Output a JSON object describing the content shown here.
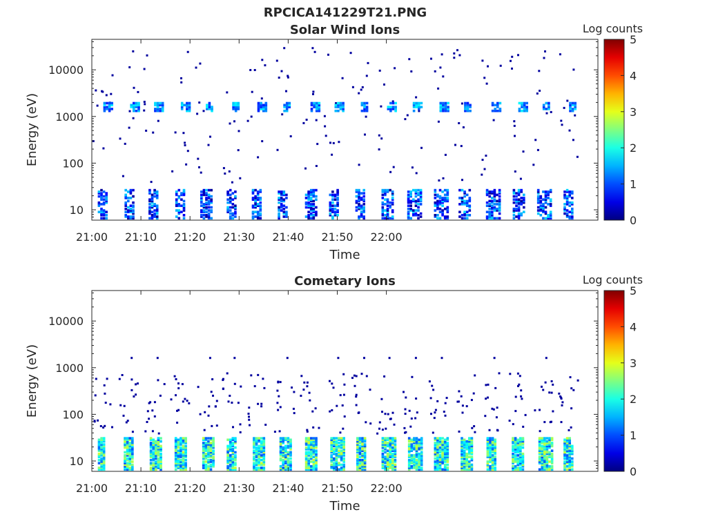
{
  "figure_title": "RPCICA141229T21.PNG",
  "chart_data": [
    {
      "type": "heatmap",
      "title": "Solar Wind Ions",
      "xlabel": "Time",
      "ylabel": "Energy (eV)",
      "x_tick_labels": [
        "21:00",
        "21:10",
        "21:20",
        "21:30",
        "21:40",
        "21:50",
        "22:00"
      ],
      "y_tick_labels": [
        "10",
        "100",
        "1000",
        "10000"
      ],
      "y_scale": "log",
      "ylim": [
        6,
        45000
      ],
      "colorbar": {
        "label": "Log counts",
        "tick_labels": [
          "0",
          "1",
          "2",
          "3",
          "4",
          "5"
        ],
        "range": [
          0,
          5
        ],
        "colormap": "jet"
      },
      "features": [
        {
          "description": "periodic bursts",
          "energy_eV": [
            7,
            30
          ],
          "log_counts": [
            0,
            2
          ]
        },
        {
          "description": "solar wind band",
          "energy_eV": [
            1400,
            2200
          ],
          "log_counts": [
            0.5,
            1.8
          ]
        }
      ]
    },
    {
      "type": "heatmap",
      "title": "Cometary Ions",
      "xlabel": "Time",
      "ylabel": "Energy (eV)",
      "x_tick_labels": [
        "21:00",
        "21:10",
        "21:20",
        "21:30",
        "21:40",
        "21:50",
        "22:00"
      ],
      "y_tick_labels": [
        "10",
        "100",
        "1000",
        "10000"
      ],
      "y_scale": "log",
      "ylim": [
        6,
        45000
      ],
      "colorbar": {
        "label": "Log counts",
        "tick_labels": [
          "0",
          "1",
          "2",
          "3",
          "4",
          "5"
        ],
        "range": [
          0,
          5
        ],
        "colormap": "jet"
      },
      "features": [
        {
          "description": "periodic bursts",
          "energy_eV": [
            7,
            35
          ],
          "log_counts": [
            1,
            2.8
          ]
        }
      ]
    }
  ]
}
